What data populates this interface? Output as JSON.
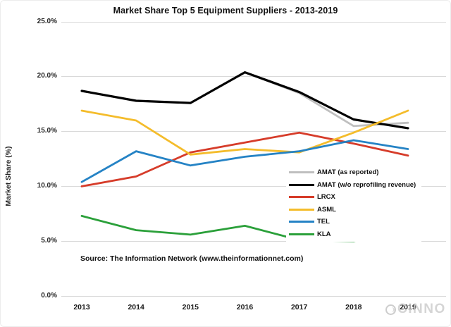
{
  "title": "Market Share Top 5 Equipment Suppliers - 2013-2019",
  "y_axis": {
    "label": "Market Share (%)",
    "tick_labels": [
      "25.0%",
      "20.0%",
      "15.0%",
      "10.0%",
      "5.0%",
      "0.0%"
    ],
    "tick_values": [
      25,
      20,
      15,
      10,
      5,
      0
    ]
  },
  "x_axis": {
    "tick_labels": [
      "2013",
      "2014",
      "2015",
      "2016",
      "2017",
      "2018",
      "2019"
    ]
  },
  "source": {
    "text": "Source: The Information Network (www.theinformationnet.com)"
  },
  "watermark": {
    "text": "CINNO",
    "logo": "circle-globe-icon",
    "color": "#c7c7c7"
  },
  "colors": {
    "grid": "#d9d9d9",
    "text": "#111111"
  },
  "chart_data": {
    "type": "line",
    "title": "Market Share Top 5 Equipment Suppliers - 2013-2019",
    "xlabel": "",
    "ylabel": "Market Share (%)",
    "ylim": [
      0,
      25
    ],
    "grid": "horizontal",
    "legend_position": "center-right",
    "x": [
      2013,
      2014,
      2015,
      2016,
      2017,
      2018,
      2019
    ],
    "series": [
      {
        "name": "AMAT (as reported)",
        "color": "#bfbfbf",
        "width": 2.8,
        "values": [
          18.7,
          17.8,
          17.6,
          20.4,
          18.5,
          15.5,
          15.8
        ]
      },
      {
        "name": "AMAT (w/o reprofiling revenue)",
        "color": "#000000",
        "width": 3.2,
        "values": [
          18.7,
          17.8,
          17.6,
          20.4,
          18.6,
          16.1,
          15.3
        ]
      },
      {
        "name": "LRCX",
        "color": "#d63c2a",
        "width": 2.8,
        "values": [
          10.0,
          10.9,
          13.1,
          14.0,
          14.9,
          13.9,
          12.8
        ]
      },
      {
        "name": "ASML",
        "color": "#f4bc2b",
        "width": 2.8,
        "values": [
          16.9,
          16.0,
          12.9,
          13.4,
          13.1,
          14.9,
          16.9
        ]
      },
      {
        "name": "TEL",
        "color": "#2583c5",
        "width": 2.8,
        "values": [
          10.4,
          13.2,
          11.9,
          12.7,
          13.2,
          14.2,
          13.4
        ]
      },
      {
        "name": "KLA",
        "color": "#2ba03a",
        "width": 2.8,
        "values": [
          7.3,
          6.0,
          5.6,
          6.4,
          5.1,
          5.0,
          6.1
        ]
      }
    ]
  }
}
